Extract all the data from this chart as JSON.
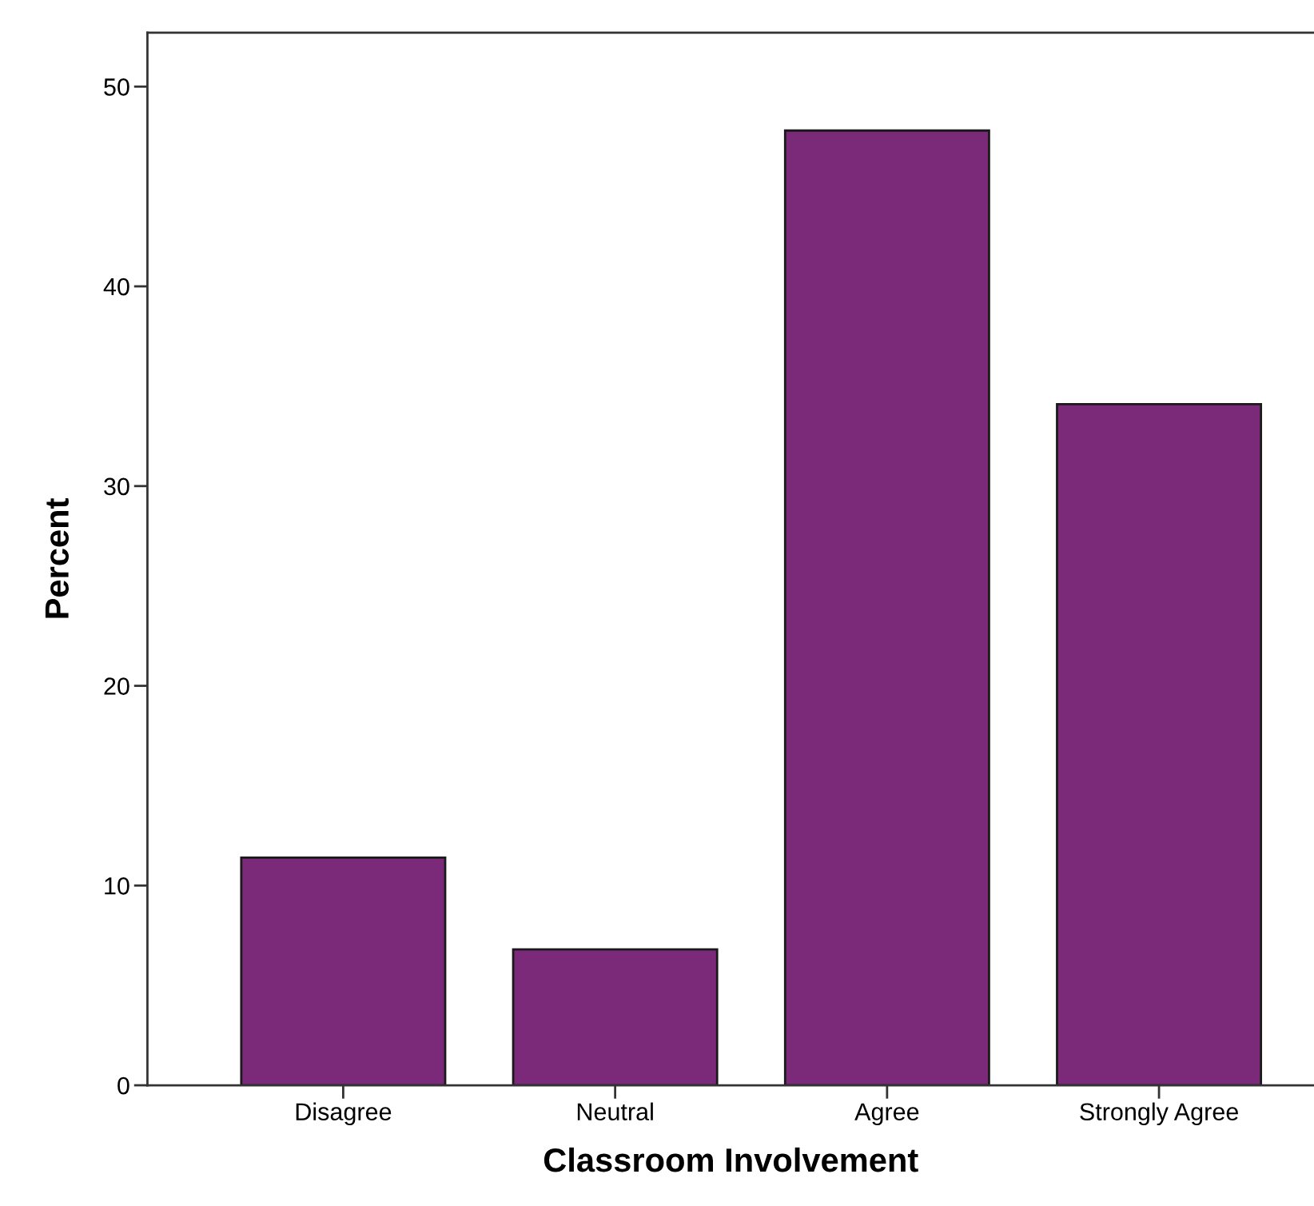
{
  "chart_data": {
    "type": "bar",
    "xlabel": "Classroom Involvement",
    "ylabel": "Percent",
    "categories": [
      "Disagree",
      "Neutral",
      "Agree",
      "Strongly Agree"
    ],
    "values": [
      11.4,
      6.8,
      47.8,
      34.1
    ],
    "color": "#7b2979",
    "ylim": [
      0,
      52.7
    ],
    "yticks": [
      0,
      10,
      20,
      30,
      40,
      50
    ],
    "grid": false
  }
}
